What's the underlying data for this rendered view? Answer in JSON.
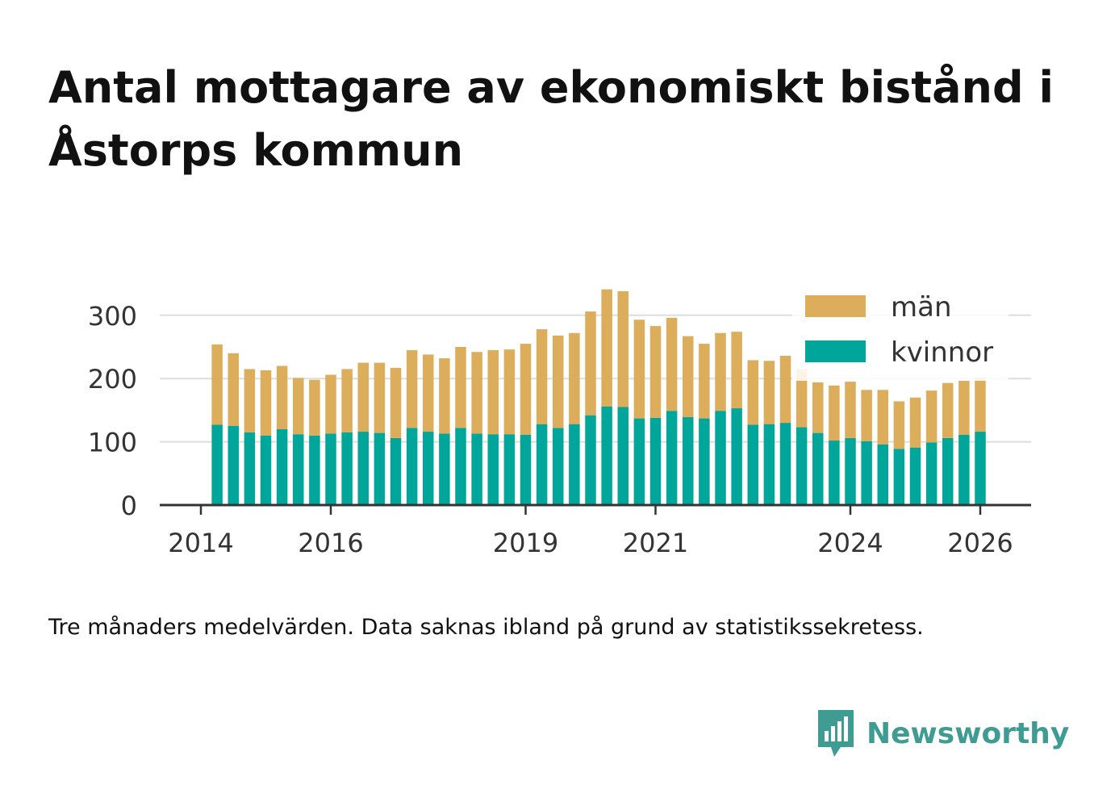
{
  "title": "Antal mottagare av ekonomiskt bistånd i Åstorps kommun",
  "footnote": "Tre månaders medelvärden. Data saknas ibland på grund av statistikssekretess.",
  "brand": {
    "name": "Newsworthy",
    "icon": "newsworthy-logo-icon",
    "color": "#3e9c93"
  },
  "colors": {
    "kvinnor": "#00a699",
    "man": "#dcad5a",
    "grid": "#dddddd",
    "axis": "#333333"
  },
  "chart_data": {
    "type": "bar",
    "stacked": true,
    "title": "",
    "xlabel": "",
    "ylabel": "",
    "ylim": [
      0,
      350
    ],
    "yticks": [
      0,
      100,
      200,
      300
    ],
    "xticks": [
      {
        "value": 2014.0,
        "label": "2014"
      },
      {
        "value": 2016.0,
        "label": "2016"
      },
      {
        "value": 2019.0,
        "label": "2019"
      },
      {
        "value": 2021.0,
        "label": "2021"
      },
      {
        "value": 2024.0,
        "label": "2024"
      },
      {
        "value": 2026.0,
        "label": "2026"
      }
    ],
    "grid": true,
    "legend_position": "top-right",
    "legend": [
      "män",
      "kvinnor"
    ],
    "x": [
      "2014-04",
      "2014-07",
      "2014-10",
      "2015-01",
      "2015-04",
      "2015-07",
      "2015-10",
      "2016-01",
      "2016-04",
      "2016-07",
      "2016-10",
      "2017-01",
      "2017-04",
      "2017-07",
      "2017-10",
      "2018-01",
      "2018-04",
      "2018-07",
      "2018-10",
      "2019-01",
      "2019-04",
      "2019-07",
      "2019-10",
      "2020-01",
      "2020-04",
      "2020-07",
      "2020-10",
      "2021-01",
      "2021-04",
      "2021-07",
      "2021-10",
      "2022-01",
      "2022-04",
      "2022-07",
      "2022-10",
      "2023-01",
      "2023-04",
      "2023-07",
      "2023-10",
      "2024-01",
      "2024-04",
      "2024-07",
      "2024-10",
      "2025-01",
      "2025-04",
      "2025-07",
      "2025-10",
      "2026-01"
    ],
    "series": [
      {
        "name": "kvinnor",
        "values": [
          127,
          125,
          115,
          110,
          120,
          112,
          110,
          113,
          115,
          116,
          114,
          106,
          122,
          116,
          113,
          122,
          113,
          112,
          112,
          111,
          128,
          122,
          128,
          142,
          156,
          155,
          137,
          138,
          149,
          139,
          137,
          149,
          153,
          127,
          128,
          130,
          123,
          114,
          102,
          106,
          101,
          96,
          89,
          91,
          99,
          106,
          111,
          116
        ]
      },
      {
        "name": "män",
        "values": [
          127,
          115,
          100,
          103,
          100,
          89,
          88,
          93,
          100,
          109,
          111,
          111,
          123,
          122,
          119,
          128,
          129,
          133,
          134,
          144,
          150,
          146,
          144,
          164,
          185,
          183,
          156,
          145,
          147,
          128,
          118,
          123,
          121,
          102,
          100,
          106,
          92,
          80,
          87,
          89,
          81,
          86,
          75,
          79,
          82,
          87,
          86,
          86
        ]
      }
    ]
  }
}
